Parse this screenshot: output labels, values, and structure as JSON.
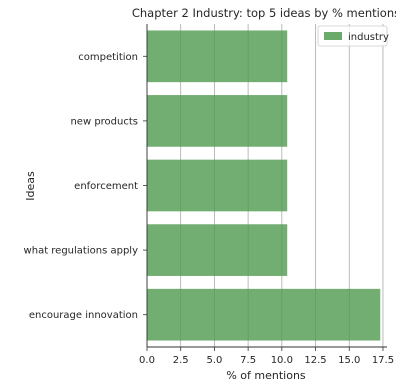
{
  "chart_data": {
    "type": "bar",
    "orientation": "horizontal",
    "title": "Chapter 2 Industry: top 5 ideas by % mentions",
    "xlabel": "% of mentions",
    "ylabel": "Ideas",
    "categories": [
      "competition",
      "new products",
      "enforcement",
      "what regulations apply",
      "encourage innovation"
    ],
    "series": [
      {
        "name": "industry",
        "values": [
          10.4,
          10.4,
          10.4,
          10.4,
          17.3
        ],
        "color": "#6aaa6a"
      }
    ],
    "xlim": [
      0,
      17.8
    ],
    "xticks": [
      "0.0",
      "2.5",
      "5.0",
      "7.5",
      "10.0",
      "12.5",
      "15.0",
      "17.5"
    ],
    "grid": "vertical",
    "legend_position": "top-right"
  }
}
